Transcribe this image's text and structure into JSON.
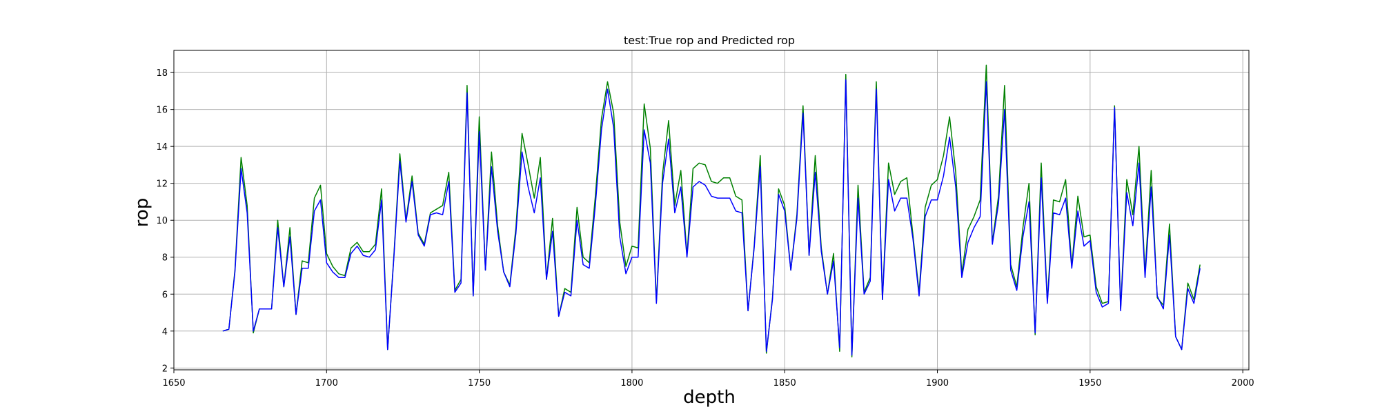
{
  "chart_data": {
    "type": "line",
    "title": "test:True rop and Predicted rop",
    "xlabel": "depth",
    "ylabel": "rop",
    "xlim": [
      1650,
      2002
    ],
    "ylim": [
      1.9,
      19.2
    ],
    "xticks": [
      1650,
      1700,
      1750,
      1800,
      1850,
      1900,
      1950,
      2000
    ],
    "yticks": [
      2,
      4,
      6,
      8,
      10,
      12,
      14,
      16,
      18
    ],
    "grid": true,
    "x": [
      1666,
      1668,
      1670,
      1672,
      1674,
      1676,
      1678,
      1680,
      1682,
      1684,
      1686,
      1688,
      1690,
      1692,
      1694,
      1696,
      1698,
      1700,
      1702,
      1704,
      1706,
      1708,
      1710,
      1712,
      1714,
      1716,
      1718,
      1720,
      1722,
      1724,
      1726,
      1728,
      1730,
      1732,
      1734,
      1736,
      1738,
      1740,
      1742,
      1744,
      1746,
      1748,
      1750,
      1752,
      1754,
      1756,
      1758,
      1760,
      1762,
      1764,
      1766,
      1768,
      1770,
      1772,
      1774,
      1776,
      1778,
      1780,
      1782,
      1784,
      1786,
      1788,
      1790,
      1792,
      1794,
      1796,
      1798,
      1800,
      1802,
      1804,
      1806,
      1808,
      1810,
      1812,
      1814,
      1816,
      1818,
      1820,
      1822,
      1824,
      1826,
      1828,
      1830,
      1832,
      1834,
      1836,
      1838,
      1840,
      1842,
      1844,
      1846,
      1848,
      1850,
      1852,
      1854,
      1856,
      1858,
      1860,
      1862,
      1864,
      1866,
      1868,
      1870,
      1872,
      1874,
      1876,
      1878,
      1880,
      1882,
      1884,
      1886,
      1888,
      1890,
      1892,
      1894,
      1896,
      1898,
      1900,
      1902,
      1904,
      1906,
      1908,
      1910,
      1912,
      1914,
      1916,
      1918,
      1920,
      1922,
      1924,
      1926,
      1928,
      1930,
      1932,
      1934,
      1936,
      1938,
      1940,
      1942,
      1944,
      1946,
      1948,
      1950,
      1952,
      1954,
      1956,
      1958,
      1960,
      1962,
      1964,
      1966,
      1968,
      1970,
      1972,
      1974,
      1976,
      1978,
      1980,
      1982,
      1984,
      1986
    ],
    "series": [
      {
        "color": "#008000",
        "values": [
          4.0,
          4.1,
          7.3,
          13.4,
          10.8,
          3.9,
          5.2,
          5.2,
          5.2,
          10.0,
          6.4,
          9.6,
          4.9,
          7.8,
          7.7,
          11.2,
          11.9,
          8.2,
          7.5,
          7.1,
          7.0,
          8.5,
          8.8,
          8.3,
          8.3,
          8.7,
          11.7,
          3.0,
          8.0,
          13.6,
          10.0,
          12.4,
          9.3,
          8.7,
          10.4,
          10.6,
          10.8,
          12.6,
          6.2,
          6.8,
          17.3,
          5.9,
          15.6,
          7.3,
          13.7,
          9.7,
          7.2,
          6.5,
          9.6,
          14.7,
          13.0,
          11.2,
          13.4,
          6.8,
          10.1,
          4.8,
          6.3,
          6.1,
          10.7,
          8.0,
          7.7,
          11.3,
          15.5,
          17.5,
          15.8,
          9.9,
          7.5,
          8.6,
          8.5,
          16.3,
          13.9,
          5.6,
          12.5,
          15.4,
          10.8,
          12.7,
          8.1,
          12.8,
          13.1,
          13.0,
          12.1,
          12.0,
          12.3,
          12.3,
          11.3,
          11.1,
          5.1,
          8.6,
          13.5,
          2.8,
          5.8,
          11.7,
          10.8,
          7.3,
          10.3,
          16.2,
          8.1,
          13.5,
          8.5,
          6.0,
          8.2,
          2.9,
          17.9,
          2.6,
          11.9,
          6.1,
          6.9,
          17.5,
          5.7,
          13.1,
          11.4,
          12.1,
          12.3,
          9.2,
          6.1,
          10.7,
          11.9,
          12.2,
          13.5,
          15.6,
          12.6,
          7.1,
          9.5,
          10.2,
          11.1,
          18.4,
          8.8,
          11.3,
          17.3,
          7.6,
          6.4,
          9.6,
          12.0,
          3.8,
          13.1,
          5.6,
          11.1,
          11.0,
          12.2,
          7.5,
          11.3,
          9.1,
          9.2,
          6.4,
          5.5,
          5.6,
          16.2,
          5.2,
          12.2,
          10.3,
          14.0,
          7.1,
          12.7,
          5.8,
          5.4,
          9.8,
          3.7,
          3.0,
          6.6,
          5.7,
          7.6
        ]
      },
      {
        "color": "#0000ff",
        "values": [
          4.0,
          4.1,
          7.2,
          12.8,
          10.4,
          4.0,
          5.2,
          5.2,
          5.2,
          9.6,
          6.4,
          9.1,
          4.9,
          7.4,
          7.4,
          10.5,
          11.1,
          7.7,
          7.2,
          6.9,
          6.9,
          8.2,
          8.6,
          8.1,
          8.0,
          8.4,
          11.1,
          3.0,
          7.9,
          13.2,
          9.9,
          12.1,
          9.2,
          8.6,
          10.3,
          10.4,
          10.3,
          12.1,
          6.1,
          6.6,
          16.9,
          5.9,
          14.8,
          7.3,
          12.9,
          9.4,
          7.2,
          6.4,
          9.3,
          13.7,
          11.8,
          10.4,
          12.3,
          6.8,
          9.4,
          4.8,
          6.1,
          5.9,
          10.0,
          7.6,
          7.4,
          10.8,
          14.9,
          17.1,
          15.0,
          9.1,
          7.1,
          8.0,
          8.0,
          14.9,
          13.1,
          5.5,
          12.0,
          14.4,
          10.4,
          11.8,
          8.0,
          11.8,
          12.1,
          11.9,
          11.3,
          11.2,
          11.2,
          11.2,
          10.5,
          10.4,
          5.1,
          8.5,
          12.9,
          2.9,
          5.7,
          11.4,
          10.5,
          7.3,
          10.1,
          15.8,
          8.1,
          12.6,
          8.3,
          6.0,
          7.8,
          3.1,
          17.6,
          2.7,
          11.2,
          6.0,
          6.7,
          17.1,
          5.7,
          12.2,
          10.5,
          11.2,
          11.2,
          9.0,
          5.9,
          10.2,
          11.1,
          11.1,
          12.4,
          14.5,
          11.8,
          6.9,
          8.8,
          9.6,
          10.2,
          17.5,
          8.7,
          10.9,
          16.0,
          7.3,
          6.2,
          9.1,
          11.0,
          3.9,
          12.3,
          5.5,
          10.4,
          10.3,
          11.2,
          7.4,
          10.5,
          8.6,
          8.9,
          6.1,
          5.3,
          5.5,
          16.1,
          5.1,
          11.5,
          9.7,
          13.1,
          6.9,
          11.8,
          5.9,
          5.2,
          9.2,
          3.7,
          3.0,
          6.3,
          5.5,
          7.4
        ]
      }
    ]
  }
}
